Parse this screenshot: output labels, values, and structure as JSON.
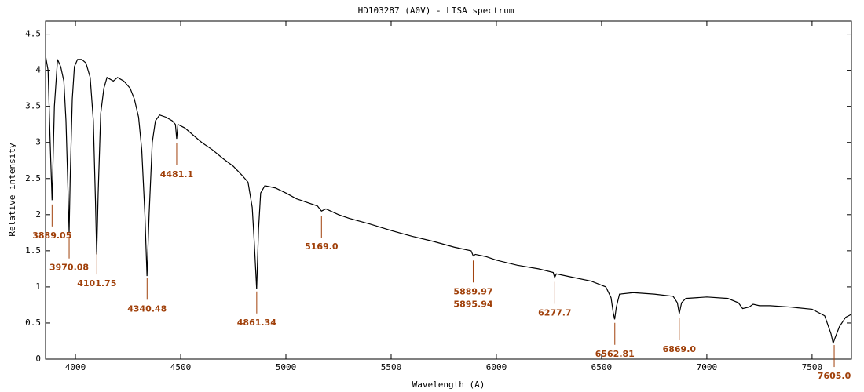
{
  "chart_data": {
    "type": "line",
    "title": "HD103287 (A0V) - LISA spectrum",
    "x_label": "Wavelength (A)",
    "y_label": "Relative intensity",
    "xlim": [
      3858,
      7687
    ],
    "ylim": [
      0,
      4.68
    ],
    "xticks": [
      4000,
      4500,
      5000,
      5500,
      6000,
      6500,
      7000,
      7500
    ],
    "yticks": [
      0,
      0.5,
      1,
      1.5,
      2,
      2.5,
      3,
      3.5,
      4,
      4.5
    ],
    "color": "#000000",
    "annotation_color": "#a0400a",
    "x": [
      3858,
      3870,
      3880,
      3889,
      3900,
      3915,
      3930,
      3945,
      3955,
      3965,
      3970,
      3975,
      3985,
      3995,
      4010,
      4030,
      4050,
      4070,
      4085,
      4095,
      4101,
      4108,
      4120,
      4135,
      4150,
      4180,
      4200,
      4230,
      4260,
      4280,
      4300,
      4315,
      4330,
      4340,
      4350,
      4365,
      4380,
      4400,
      4430,
      4460,
      4475,
      4481,
      4487,
      4520,
      4560,
      4600,
      4650,
      4700,
      4750,
      4790,
      4820,
      4840,
      4850,
      4861,
      4870,
      4880,
      4900,
      4950,
      5000,
      5050,
      5100,
      5150,
      5169,
      5190,
      5250,
      5300,
      5400,
      5500,
      5600,
      5700,
      5800,
      5880,
      5890,
      5900,
      5950,
      6000,
      6100,
      6200,
      6270,
      6277,
      6285,
      6350,
      6450,
      6520,
      6545,
      6555,
      6562,
      6570,
      6585,
      6650,
      6750,
      6840,
      6860,
      6869,
      6880,
      6900,
      7000,
      7100,
      7150,
      7170,
      7200,
      7220,
      7250,
      7300,
      7400,
      7500,
      7560,
      7590,
      7600,
      7610,
      7630,
      7660,
      7687
    ],
    "values": [
      4.2,
      4.0,
      3.0,
      2.2,
      3.5,
      4.15,
      4.05,
      3.85,
      3.3,
      2.3,
      1.75,
      2.5,
      3.6,
      4.05,
      4.15,
      4.15,
      4.1,
      3.9,
      3.3,
      2.2,
      1.45,
      2.3,
      3.4,
      3.75,
      3.9,
      3.85,
      3.9,
      3.85,
      3.75,
      3.6,
      3.35,
      2.9,
      2.0,
      1.15,
      2.0,
      3.0,
      3.3,
      3.38,
      3.35,
      3.3,
      3.25,
      3.05,
      3.25,
      3.2,
      3.1,
      3.0,
      2.9,
      2.78,
      2.67,
      2.55,
      2.45,
      2.1,
      1.6,
      0.97,
      1.8,
      2.3,
      2.4,
      2.37,
      2.3,
      2.22,
      2.17,
      2.12,
      2.05,
      2.08,
      2.0,
      1.95,
      1.87,
      1.78,
      1.7,
      1.63,
      1.55,
      1.5,
      1.43,
      1.45,
      1.42,
      1.37,
      1.3,
      1.25,
      1.2,
      1.13,
      1.18,
      1.14,
      1.08,
      1.0,
      0.85,
      0.65,
      0.55,
      0.72,
      0.9,
      0.92,
      0.9,
      0.87,
      0.78,
      0.63,
      0.78,
      0.84,
      0.86,
      0.84,
      0.78,
      0.7,
      0.72,
      0.76,
      0.74,
      0.74,
      0.72,
      0.69,
      0.6,
      0.35,
      0.22,
      0.3,
      0.45,
      0.58,
      0.62
    ],
    "annotations": [
      {
        "x": 3889.05,
        "text": [
          "3889.05"
        ]
      },
      {
        "x": 3970.08,
        "text": [
          "3970.08"
        ]
      },
      {
        "x": 4101.75,
        "text": [
          "4101.75"
        ]
      },
      {
        "x": 4340.48,
        "text": [
          "4340.48"
        ]
      },
      {
        "x": 4481.1,
        "text": [
          "4481.1"
        ]
      },
      {
        "x": 4861.34,
        "text": [
          "4861.34"
        ]
      },
      {
        "x": 5169.0,
        "text": [
          "5169.0"
        ]
      },
      {
        "x": 5889.97,
        "text": [
          "5889.97",
          "5895.94"
        ]
      },
      {
        "x": 6277.7,
        "text": [
          "6277.7"
        ]
      },
      {
        "x": 6562.81,
        "text": [
          "6562.81"
        ]
      },
      {
        "x": 6869.0,
        "text": [
          "6869.0"
        ]
      },
      {
        "x": 7605.0,
        "text": [
          "7605.0"
        ]
      }
    ]
  }
}
